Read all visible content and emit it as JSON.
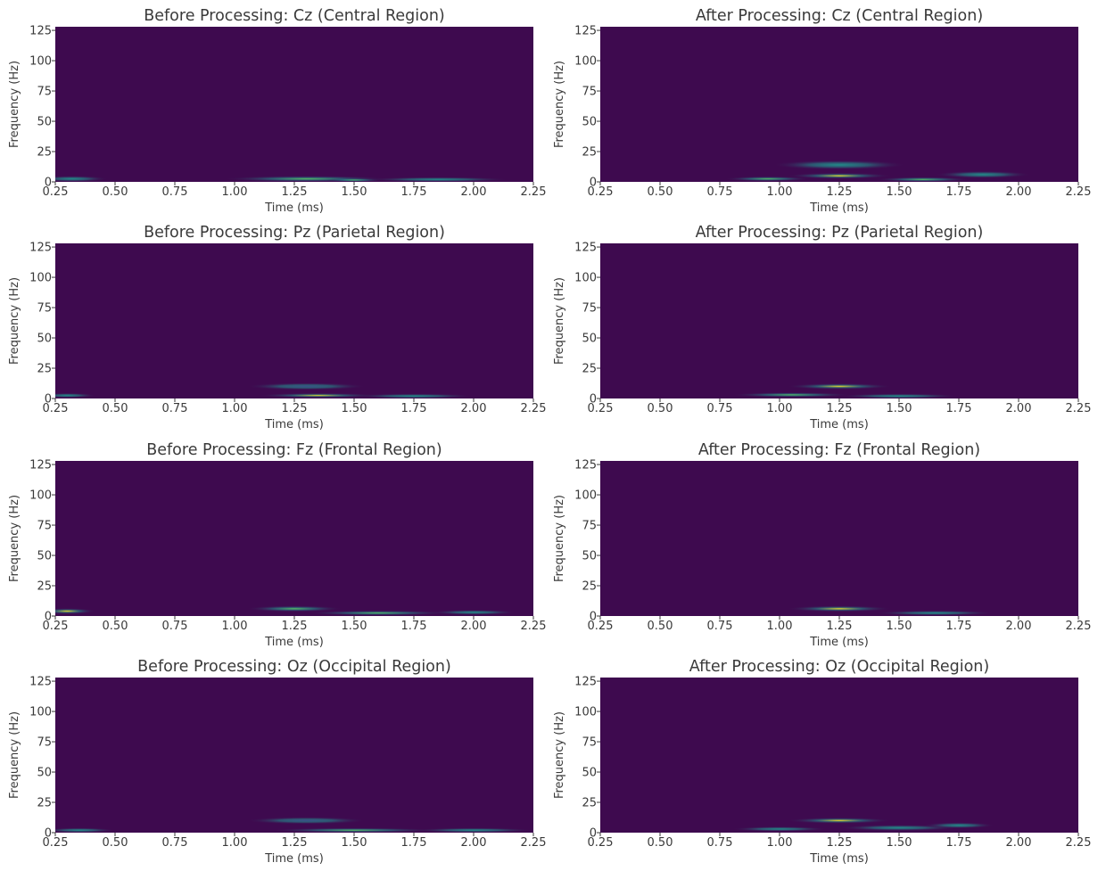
{
  "chart_data": [
    {
      "type": "heatmap",
      "title": "Before Processing: Cz (Central Region)",
      "xlabel": "Time (ms)",
      "ylabel": "Frequency (Hz)",
      "xlim": [
        0.25,
        2.25
      ],
      "ylim": [
        0,
        128
      ],
      "xticks": [
        "0.25",
        "0.50",
        "0.75",
        "1.00",
        "1.25",
        "1.50",
        "1.75",
        "2.00",
        "2.25"
      ],
      "yticks": [
        "0",
        "25",
        "50",
        "75",
        "100",
        "125"
      ],
      "hotspots": [
        {
          "t": 0.32,
          "f": 2.5,
          "intensity": 0.45,
          "spread_t": 0.15,
          "spread_f": 2.5
        },
        {
          "t": 1.3,
          "f": 2.5,
          "intensity": 0.55,
          "spread_t": 0.35,
          "spread_f": 2.5
        },
        {
          "t": 1.5,
          "f": 1.5,
          "intensity": 0.7,
          "spread_t": 0.12,
          "spread_f": 1.5
        },
        {
          "t": 1.85,
          "f": 2.0,
          "intensity": 0.3,
          "spread_t": 0.3,
          "spread_f": 2.0
        }
      ]
    },
    {
      "type": "heatmap",
      "title": "After Processing: Cz (Central Region)",
      "xlabel": "Time (ms)",
      "ylabel": "Frequency (Hz)",
      "xlim": [
        0.25,
        2.25
      ],
      "ylim": [
        0,
        128
      ],
      "xticks": [
        "0.25",
        "0.50",
        "0.75",
        "1.00",
        "1.25",
        "1.50",
        "1.75",
        "2.00",
        "2.25"
      ],
      "yticks": [
        "0",
        "25",
        "50",
        "75",
        "100",
        "125"
      ],
      "hotspots": [
        {
          "t": 1.25,
          "f": 14,
          "intensity": 0.3,
          "spread_t": 0.28,
          "spread_f": 4
        },
        {
          "t": 1.25,
          "f": 5,
          "intensity": 0.85,
          "spread_t": 0.22,
          "spread_f": 2.5
        },
        {
          "t": 0.95,
          "f": 2.5,
          "intensity": 0.6,
          "spread_t": 0.18,
          "spread_f": 2
        },
        {
          "t": 1.6,
          "f": 2.0,
          "intensity": 0.6,
          "spread_t": 0.2,
          "spread_f": 2
        },
        {
          "t": 1.85,
          "f": 6,
          "intensity": 0.25,
          "spread_t": 0.2,
          "spread_f": 3
        }
      ]
    },
    {
      "type": "heatmap",
      "title": "Before Processing: Pz (Parietal Region)",
      "xlabel": "Time (ms)",
      "ylabel": "Frequency (Hz)",
      "xlim": [
        0.25,
        2.25
      ],
      "ylim": [
        0,
        128
      ],
      "xticks": [
        "0.25",
        "0.50",
        "0.75",
        "1.00",
        "1.25",
        "1.50",
        "1.75",
        "2.00",
        "2.25"
      ],
      "yticks": [
        "0",
        "25",
        "50",
        "75",
        "100",
        "125"
      ],
      "hotspots": [
        {
          "t": 0.3,
          "f": 2.5,
          "intensity": 0.45,
          "spread_t": 0.12,
          "spread_f": 2
        },
        {
          "t": 1.3,
          "f": 10,
          "intensity": 0.2,
          "spread_t": 0.25,
          "spread_f": 3
        },
        {
          "t": 1.35,
          "f": 2.5,
          "intensity": 0.75,
          "spread_t": 0.25,
          "spread_f": 2
        },
        {
          "t": 1.75,
          "f": 2.0,
          "intensity": 0.3,
          "spread_t": 0.25,
          "spread_f": 2
        }
      ]
    },
    {
      "type": "heatmap",
      "title": "After Processing: Pz (Parietal Region)",
      "xlabel": "Time (ms)",
      "ylabel": "Frequency (Hz)",
      "xlim": [
        0.25,
        2.25
      ],
      "ylim": [
        0,
        128
      ],
      "xticks": [
        "0.25",
        "0.50",
        "0.75",
        "1.00",
        "1.25",
        "1.50",
        "1.75",
        "2.00",
        "2.25"
      ],
      "yticks": [
        "0",
        "25",
        "50",
        "75",
        "100",
        "125"
      ],
      "hotspots": [
        {
          "t": 1.25,
          "f": 10,
          "intensity": 0.8,
          "spread_t": 0.22,
          "spread_f": 2.5
        },
        {
          "t": 1.05,
          "f": 3,
          "intensity": 0.55,
          "spread_t": 0.25,
          "spread_f": 2
        },
        {
          "t": 1.5,
          "f": 2.0,
          "intensity": 0.45,
          "spread_t": 0.25,
          "spread_f": 2
        }
      ]
    },
    {
      "type": "heatmap",
      "title": "Before Processing: Fz (Frontal Region)",
      "xlabel": "Time (ms)",
      "ylabel": "Frequency (Hz)",
      "xlim": [
        0.25,
        2.25
      ],
      "ylim": [
        0,
        128
      ],
      "xticks": [
        "0.25",
        "0.50",
        "0.75",
        "1.00",
        "1.25",
        "1.50",
        "1.75",
        "2.00",
        "2.25"
      ],
      "yticks": [
        "0",
        "25",
        "50",
        "75",
        "100",
        "125"
      ],
      "hotspots": [
        {
          "t": 0.3,
          "f": 4,
          "intensity": 0.8,
          "spread_t": 0.12,
          "spread_f": 2.5
        },
        {
          "t": 1.25,
          "f": 6,
          "intensity": 0.7,
          "spread_t": 0.2,
          "spread_f": 2.5
        },
        {
          "t": 1.6,
          "f": 2.5,
          "intensity": 0.55,
          "spread_t": 0.3,
          "spread_f": 2
        },
        {
          "t": 2.0,
          "f": 3,
          "intensity": 0.45,
          "spread_t": 0.18,
          "spread_f": 2
        }
      ]
    },
    {
      "type": "heatmap",
      "title": "After Processing: Fz (Frontal Region)",
      "xlabel": "Time (ms)",
      "ylabel": "Frequency (Hz)",
      "xlim": [
        0.25,
        2.25
      ],
      "ylim": [
        0,
        128
      ],
      "xticks": [
        "0.25",
        "0.50",
        "0.75",
        "1.00",
        "1.25",
        "1.50",
        "1.75",
        "2.00",
        "2.25"
      ],
      "yticks": [
        "0",
        "25",
        "50",
        "75",
        "100",
        "125"
      ],
      "hotspots": [
        {
          "t": 1.25,
          "f": 6,
          "intensity": 0.75,
          "spread_t": 0.22,
          "spread_f": 2.5
        },
        {
          "t": 1.65,
          "f": 2.5,
          "intensity": 0.35,
          "spread_t": 0.25,
          "spread_f": 2
        }
      ]
    },
    {
      "type": "heatmap",
      "title": "Before Processing: Oz (Occipital Region)",
      "xlabel": "Time (ms)",
      "ylabel": "Frequency (Hz)",
      "xlim": [
        0.25,
        2.25
      ],
      "ylim": [
        0,
        128
      ],
      "xticks": [
        "0.25",
        "0.50",
        "0.75",
        "1.00",
        "1.25",
        "1.50",
        "1.75",
        "2.00",
        "2.25"
      ],
      "yticks": [
        "0",
        "25",
        "50",
        "75",
        "100",
        "125"
      ],
      "hotspots": [
        {
          "t": 0.35,
          "f": 2,
          "intensity": 0.3,
          "spread_t": 0.15,
          "spread_f": 2
        },
        {
          "t": 1.3,
          "f": 10,
          "intensity": 0.2,
          "spread_t": 0.25,
          "spread_f": 3
        },
        {
          "t": 1.5,
          "f": 2.0,
          "intensity": 0.6,
          "spread_t": 0.35,
          "spread_f": 2
        },
        {
          "t": 2.0,
          "f": 2.0,
          "intensity": 0.35,
          "spread_t": 0.25,
          "spread_f": 2
        }
      ]
    },
    {
      "type": "heatmap",
      "title": "After Processing: Oz (Occipital Region)",
      "xlabel": "Time (ms)",
      "ylabel": "Frequency (Hz)",
      "xlim": [
        0.25,
        2.25
      ],
      "ylim": [
        0,
        128
      ],
      "xticks": [
        "0.25",
        "0.50",
        "0.75",
        "1.00",
        "1.25",
        "1.50",
        "1.75",
        "2.00",
        "2.25"
      ],
      "yticks": [
        "0",
        "25",
        "50",
        "75",
        "100",
        "125"
      ],
      "hotspots": [
        {
          "t": 1.25,
          "f": 10,
          "intensity": 0.8,
          "spread_t": 0.22,
          "spread_f": 2.5
        },
        {
          "t": 1.0,
          "f": 3,
          "intensity": 0.45,
          "spread_t": 0.2,
          "spread_f": 2
        },
        {
          "t": 1.5,
          "f": 4,
          "intensity": 0.35,
          "spread_t": 0.25,
          "spread_f": 2.5
        },
        {
          "t": 1.75,
          "f": 6,
          "intensity": 0.25,
          "spread_t": 0.15,
          "spread_f": 2.5
        }
      ]
    }
  ],
  "colors": {
    "background": "#3e0a4f",
    "colormap": [
      "#440154",
      "#3b528b",
      "#21918c",
      "#5ec962",
      "#fde725"
    ]
  }
}
